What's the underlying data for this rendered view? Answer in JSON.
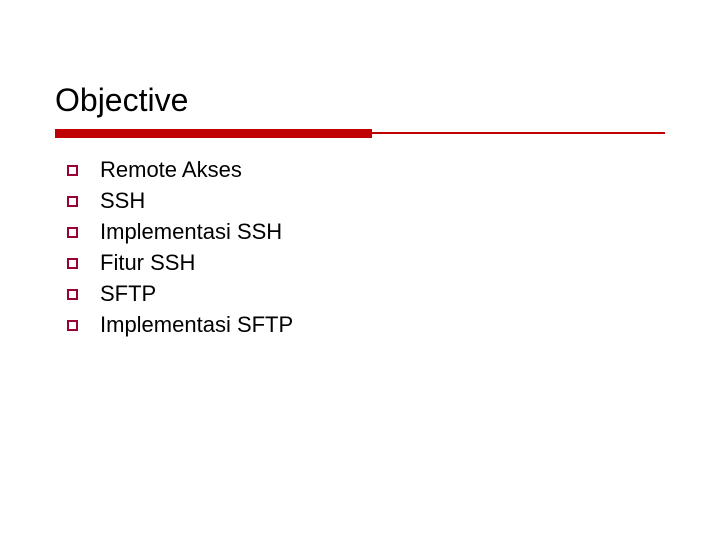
{
  "slide": {
    "title": "Objective",
    "title_fontsize": 32,
    "title_color": "#000000",
    "underline": {
      "thick_color": "#c00000",
      "thick_width_pct": 52,
      "thin_color": "#c00000"
    },
    "bullets": [
      {
        "label": "Remote Akses"
      },
      {
        "label": "SSH"
      },
      {
        "label": "Implementasi SSH"
      },
      {
        "label": "Fitur SSH"
      },
      {
        "label": "SFTP"
      },
      {
        "label": "Implementasi SFTP"
      }
    ],
    "bullet_marker_color": "#990033",
    "bullet_fontsize": 22,
    "background_color": "#ffffff"
  }
}
